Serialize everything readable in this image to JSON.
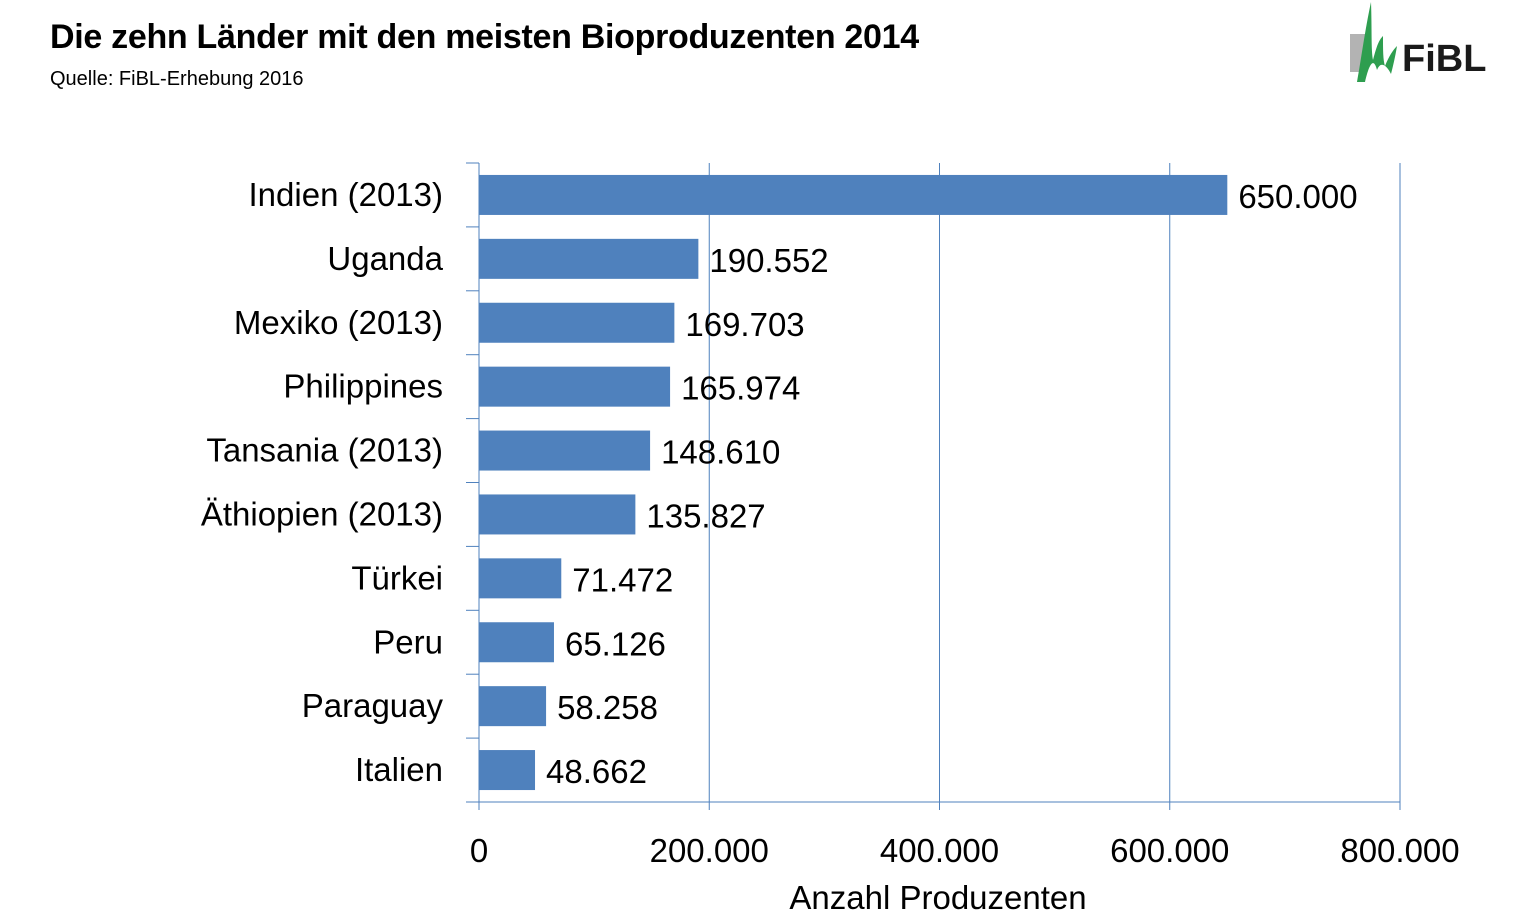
{
  "header": {
    "title": "Die zehn Länder mit den meisten Bioproduzenten 2014",
    "subtitle": "Quelle: FiBL-Erhebung 2016"
  },
  "logo": {
    "text": "FiBL",
    "colors": {
      "green": "#2e9e4f",
      "gray": "#b3b3b3"
    }
  },
  "chart_data": {
    "type": "bar",
    "orientation": "horizontal",
    "categories": [
      "Indien (2013)",
      "Uganda",
      "Mexiko (2013)",
      "Philippines",
      "Tansania (2013)",
      "Äthiopien (2013)",
      "Türkei",
      "Peru",
      "Paraguay",
      "Italien"
    ],
    "values": [
      650000,
      190552,
      169703,
      165974,
      148610,
      135827,
      71472,
      65126,
      58258,
      48662
    ],
    "value_labels": [
      "650.000",
      "190.552",
      "169.703",
      "165.974",
      "148.610",
      "135.827",
      "71.472",
      "65.126",
      "58.258",
      "48.662"
    ],
    "xlabel": "Anzahl Produzenten",
    "ylabel": "",
    "xlim": [
      0,
      800000
    ],
    "xticks": [
      0,
      200000,
      400000,
      600000,
      800000
    ],
    "xtick_labels": [
      "0",
      "200.000",
      "400.000",
      "600.000",
      "800.000"
    ],
    "grid": "vertical",
    "bar_color": "#4f81bd",
    "grid_color": "#4f81bd"
  }
}
